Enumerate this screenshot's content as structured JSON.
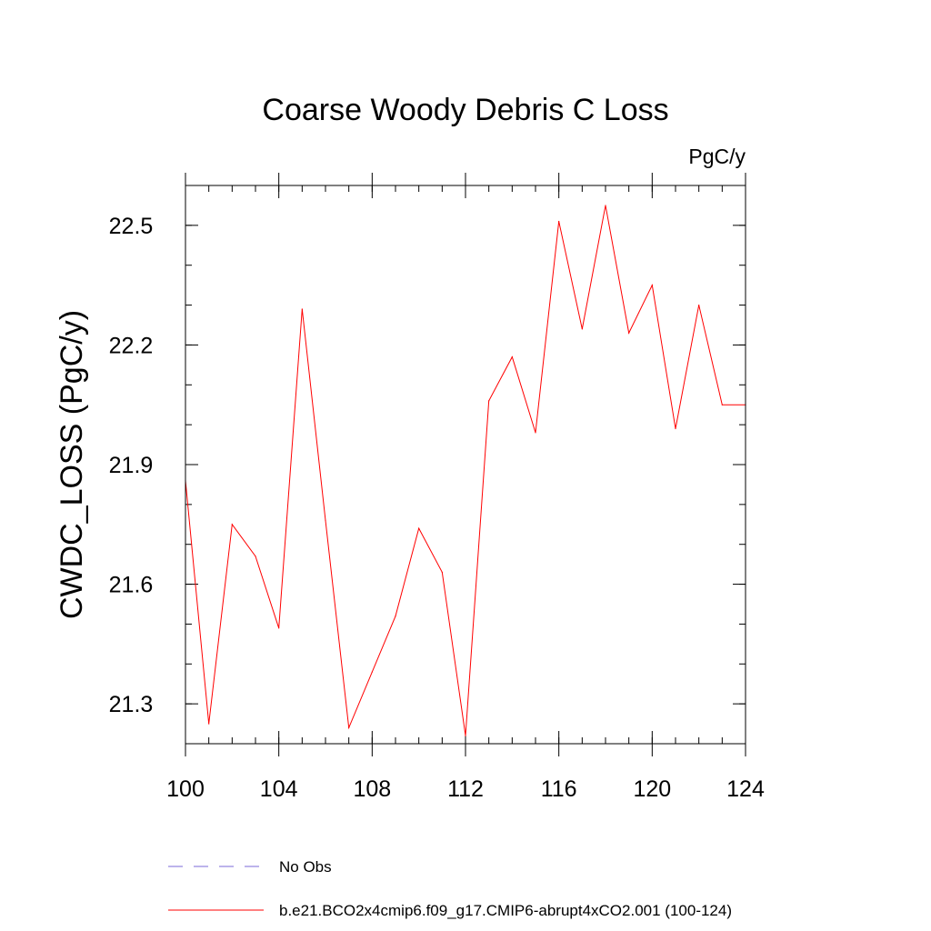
{
  "chart_data": {
    "type": "line",
    "title": "Coarse Woody Debris C Loss",
    "units_label": "PgC/y",
    "xlabel": "",
    "ylabel": "CWDC_LOSS  (PgC/y)",
    "xlim": [
      100,
      124
    ],
    "ylim": [
      21.2,
      22.6
    ],
    "x_major_ticks": [
      100,
      104,
      108,
      112,
      116,
      120,
      124
    ],
    "x_tick_labels": [
      "100",
      "104",
      "108",
      "112",
      "116",
      "120",
      "124"
    ],
    "x_minor_step": 1,
    "y_major_ticks": [
      21.3,
      21.6,
      21.9,
      22.2,
      22.5
    ],
    "y_tick_labels": [
      "21.3",
      "21.6",
      "21.9",
      "22.2",
      "22.5"
    ],
    "y_minor_step": 0.1,
    "grid": false,
    "legend_position": "bottom",
    "series": [
      {
        "name": "b.e21.BCO2x4cmip6.f09_g17.CMIP6-abrupt4xCO2.001 (100-124)",
        "color": "#ff0000",
        "style": "solid",
        "x": [
          100,
          101,
          102,
          103,
          104,
          105,
          106,
          107,
          108,
          109,
          110,
          111,
          112,
          113,
          114,
          115,
          116,
          117,
          118,
          119,
          120,
          121,
          122,
          123,
          124
        ],
        "values": [
          21.86,
          21.25,
          21.75,
          21.67,
          21.49,
          22.29,
          21.76,
          21.24,
          21.38,
          21.52,
          21.74,
          21.63,
          21.22,
          22.06,
          22.17,
          21.98,
          22.51,
          22.24,
          22.55,
          22.23,
          22.35,
          21.99,
          22.3,
          22.05,
          22.05
        ]
      }
    ],
    "legend": [
      {
        "label": "No Obs",
        "color": "#7b68d8",
        "style": "dashed"
      },
      {
        "label": "b.e21.BCO2x4cmip6.f09_g17.CMIP6-abrupt4xCO2.001 (100-124)",
        "color": "#ff0000",
        "style": "solid"
      }
    ]
  }
}
